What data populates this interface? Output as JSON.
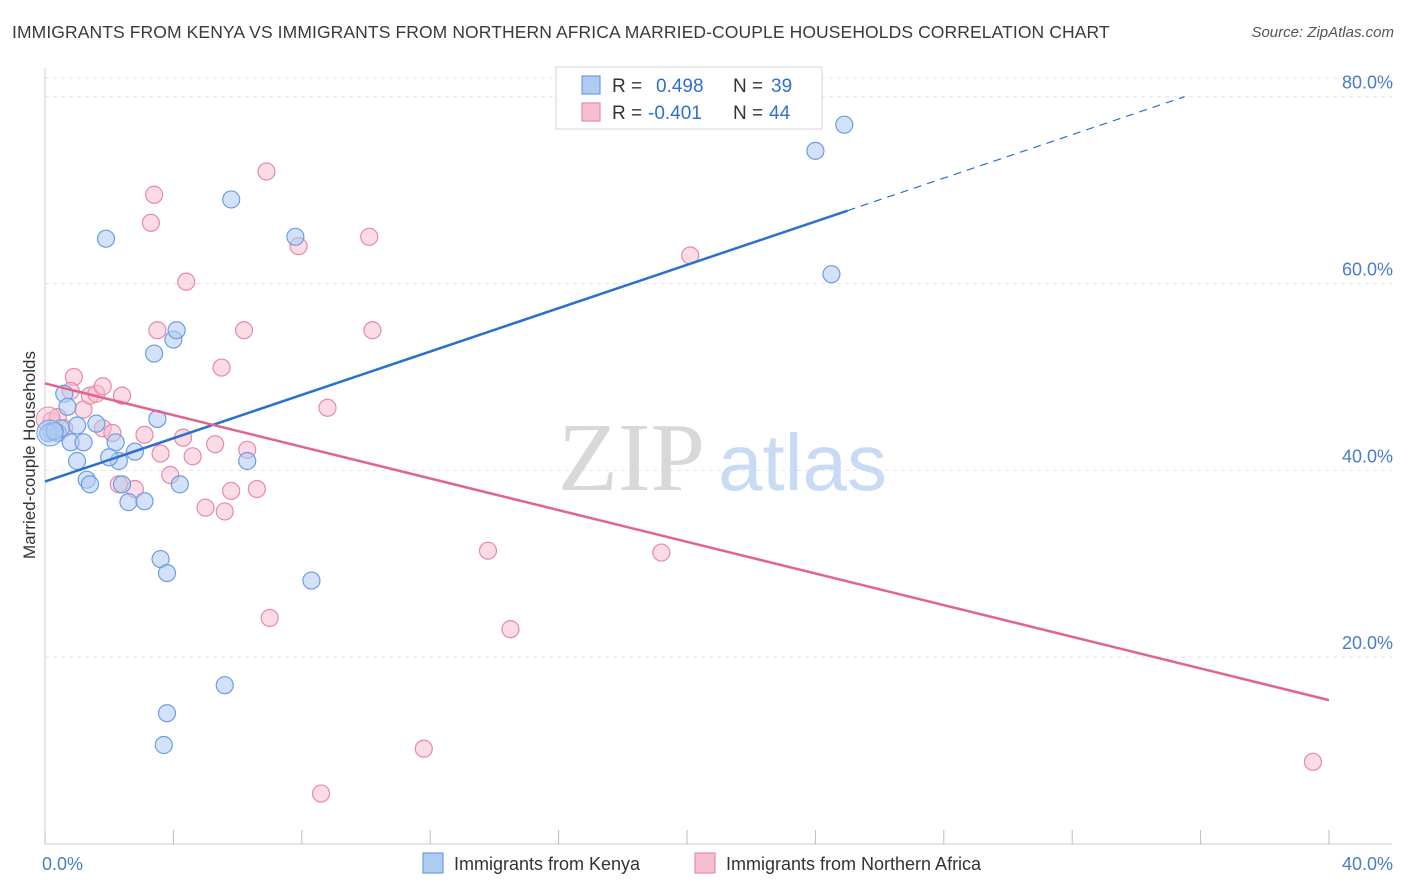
{
  "title": "IMMIGRANTS FROM KENYA VS IMMIGRANTS FROM NORTHERN AFRICA MARRIED-COUPLE HOUSEHOLDS CORRELATION CHART",
  "source": "Source: ZipAtlas.com",
  "watermark": {
    "zip": "ZIP",
    "atlas": "atlas"
  },
  "colors": {
    "kenya_fill": "#aecbf2",
    "kenya_stroke": "#6d9de0",
    "kenya_line": "#2b6fd0",
    "nafrica_fill": "#f7bed0",
    "nafrica_stroke": "#e68aa8",
    "nafrica_line": "#e0648e",
    "grid": "#e3e3e3",
    "tick_text": "#4a7cc7"
  },
  "legend": {
    "r_label": "R =",
    "n_label": "N =",
    "rows": [
      {
        "r": "0.498",
        "n": "39"
      },
      {
        "r": "-0.401",
        "n": "44"
      }
    ]
  },
  "chart_data": {
    "type": "scatter",
    "title": "IMMIGRANTS FROM KENYA VS IMMIGRANTS FROM NORTHERN AFRICA MARRIED-COUPLE HOUSEHOLDS CORRELATION CHART",
    "xlabel": "",
    "ylabel": "Married-couple Households",
    "xlim": [
      0,
      40
    ],
    "ylim": [
      0,
      82
    ],
    "x_ticks": [
      "0.0%",
      "40.0%"
    ],
    "y_ticks": [
      {
        "value": 20,
        "label": "20.0%"
      },
      {
        "value": 40,
        "label": "40.0%"
      },
      {
        "value": 60,
        "label": "60.0%"
      },
      {
        "value": 80,
        "label": "80.0%"
      }
    ],
    "grid": true,
    "legend_position": "top-center",
    "series": [
      {
        "name": "Immigrants from Kenya",
        "trend": {
          "x0": 0,
          "y0": 38.8,
          "x1": 25,
          "y1": 67.8,
          "dash_to_x": 35.5,
          "dash_to_y": 80
        },
        "points": [
          [
            0.2,
            44.2
          ],
          [
            0.4,
            44.0
          ],
          [
            0.5,
            44.5
          ],
          [
            0.6,
            48.2
          ],
          [
            0.7,
            46.8
          ],
          [
            0.8,
            43.0
          ],
          [
            1.0,
            41.0
          ],
          [
            1.0,
            44.8
          ],
          [
            1.2,
            43.0
          ],
          [
            1.3,
            39.0
          ],
          [
            1.4,
            38.5
          ],
          [
            1.6,
            45.0
          ],
          [
            1.9,
            64.8
          ],
          [
            2.2,
            43.0
          ],
          [
            2.3,
            41.0
          ],
          [
            2.4,
            38.5
          ],
          [
            2.6,
            36.6
          ],
          [
            2.8,
            42.0
          ],
          [
            3.1,
            36.7
          ],
          [
            3.4,
            52.5
          ],
          [
            3.6,
            30.5
          ],
          [
            3.8,
            29.0
          ],
          [
            4.0,
            54.0
          ],
          [
            4.1,
            55.0
          ],
          [
            4.2,
            38.5
          ],
          [
            3.7,
            10.6
          ],
          [
            3.8,
            14.0
          ],
          [
            5.8,
            69.0
          ],
          [
            5.6,
            17.0
          ],
          [
            6.3,
            41.0
          ],
          [
            7.8,
            65.0
          ],
          [
            8.3,
            28.2
          ],
          [
            24.0,
            74.2
          ],
          [
            24.5,
            61.0
          ],
          [
            24.9,
            77.0
          ],
          [
            0.1,
            44.0
          ],
          [
            0.3,
            44.2
          ],
          [
            2.0,
            41.4
          ],
          [
            3.5,
            45.5
          ]
        ]
      },
      {
        "name": "Immigrants from Northern Africa",
        "trend": {
          "x0": 0,
          "y0": 49.3,
          "x1": 40,
          "y1": 15.4
        },
        "points": [
          [
            0.2,
            45.3
          ],
          [
            0.4,
            45.7
          ],
          [
            0.6,
            44.5
          ],
          [
            0.9,
            50.0
          ],
          [
            1.2,
            46.5
          ],
          [
            1.4,
            48.0
          ],
          [
            1.6,
            48.2
          ],
          [
            1.8,
            44.5
          ],
          [
            2.1,
            44.0
          ],
          [
            2.3,
            38.5
          ],
          [
            2.4,
            48.0
          ],
          [
            2.8,
            38.0
          ],
          [
            3.1,
            43.8
          ],
          [
            3.3,
            66.5
          ],
          [
            3.4,
            69.5
          ],
          [
            3.5,
            55.0
          ],
          [
            3.6,
            41.8
          ],
          [
            3.9,
            39.5
          ],
          [
            4.3,
            43.5
          ],
          [
            4.4,
            60.2
          ],
          [
            4.6,
            41.5
          ],
          [
            5.0,
            36.0
          ],
          [
            5.3,
            42.8
          ],
          [
            5.5,
            51.0
          ],
          [
            5.6,
            35.6
          ],
          [
            5.8,
            37.8
          ],
          [
            6.2,
            55.0
          ],
          [
            6.3,
            42.2
          ],
          [
            6.6,
            38.0
          ],
          [
            6.9,
            72.0
          ],
          [
            7.0,
            24.2
          ],
          [
            7.9,
            64.0
          ],
          [
            8.8,
            46.7
          ],
          [
            8.6,
            5.4
          ],
          [
            10.1,
            65.0
          ],
          [
            10.2,
            55.0
          ],
          [
            11.8,
            10.2
          ],
          [
            13.8,
            31.4
          ],
          [
            14.5,
            23.0
          ],
          [
            19.2,
            31.2
          ],
          [
            20.1,
            63.0
          ],
          [
            39.5,
            8.8
          ],
          [
            0.8,
            48.5
          ],
          [
            1.8,
            49.0
          ]
        ]
      }
    ]
  }
}
